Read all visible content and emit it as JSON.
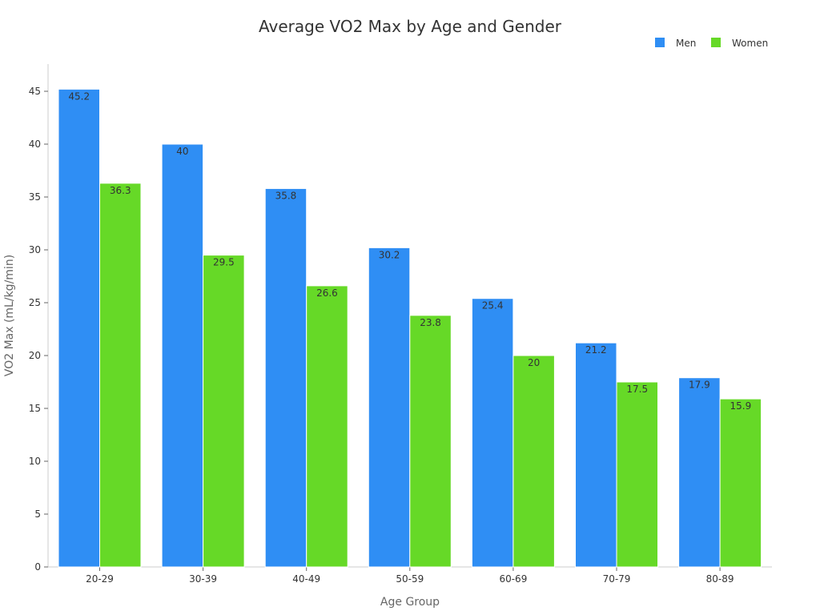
{
  "chart_data": {
    "type": "bar",
    "title": "Average VO2 Max by Age and Gender",
    "xlabel": "Age Group",
    "ylabel": "VO2 Max (mL/kg/min)",
    "categories": [
      "20-29",
      "30-39",
      "40-49",
      "50-59",
      "60-69",
      "70-79",
      "80-89"
    ],
    "series": [
      {
        "name": "Men",
        "color": "#2f8ef4",
        "values": [
          45.2,
          40,
          35.8,
          30.2,
          25.4,
          21.2,
          17.9
        ]
      },
      {
        "name": "Women",
        "color": "#66d927",
        "values": [
          36.3,
          29.5,
          26.6,
          23.8,
          20,
          17.5,
          15.9
        ]
      }
    ],
    "ylim": [
      0,
      47.5
    ],
    "yticks": [
      0,
      5,
      10,
      15,
      20,
      25,
      30,
      35,
      40,
      45
    ],
    "grid": false,
    "legend_position": "top-right",
    "data_labels": true
  }
}
